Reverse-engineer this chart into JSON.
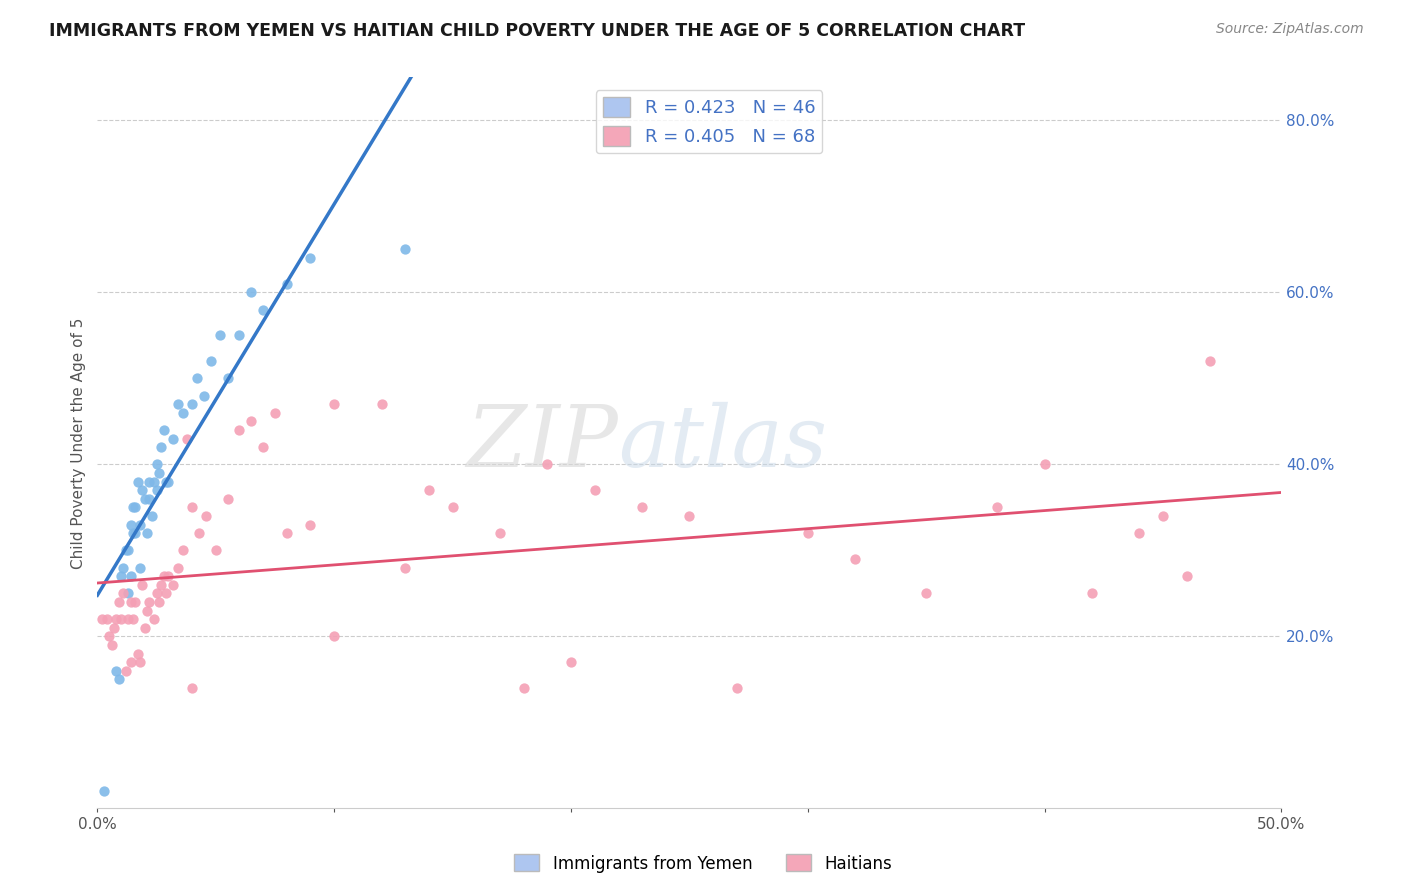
{
  "title": "IMMIGRANTS FROM YEMEN VS HAITIAN CHILD POVERTY UNDER THE AGE OF 5 CORRELATION CHART",
  "source": "Source: ZipAtlas.com",
  "ylabel": "Child Poverty Under the Age of 5",
  "xlim": [
    0.0,
    0.5
  ],
  "ylim": [
    0.0,
    0.85
  ],
  "xticks": [
    0.0,
    0.1,
    0.2,
    0.3,
    0.4,
    0.5
  ],
  "xticklabels_ends": [
    "0.0%",
    "50.0%"
  ],
  "yticks": [
    0.2,
    0.4,
    0.6,
    0.8
  ],
  "yticklabels": [
    "20.0%",
    "40.0%",
    "60.0%",
    "80.0%"
  ],
  "legend1_label": "R = 0.423   N = 46",
  "legend2_label": "R = 0.405   N = 68",
  "legend_color1": "#aec6f0",
  "legend_color2": "#f4a7b9",
  "watermark_zip": "ZIP",
  "watermark_atlas": "atlas",
  "scatter_yemen_color": "#7fb8e8",
  "scatter_haiti_color": "#f4a0b5",
  "line_yemen_color": "#3478c8",
  "line_haiti_color": "#e05070",
  "line_dash_color": "#9ab8d8",
  "yemen_points_x": [
    0.003,
    0.008,
    0.009,
    0.01,
    0.011,
    0.012,
    0.013,
    0.013,
    0.014,
    0.014,
    0.015,
    0.015,
    0.016,
    0.016,
    0.017,
    0.018,
    0.018,
    0.019,
    0.02,
    0.021,
    0.022,
    0.022,
    0.023,
    0.024,
    0.025,
    0.025,
    0.026,
    0.027,
    0.028,
    0.029,
    0.03,
    0.032,
    0.034,
    0.036,
    0.04,
    0.042,
    0.045,
    0.048,
    0.052,
    0.055,
    0.06,
    0.065,
    0.07,
    0.08,
    0.09,
    0.13
  ],
  "yemen_points_y": [
    0.02,
    0.16,
    0.15,
    0.27,
    0.28,
    0.3,
    0.25,
    0.3,
    0.27,
    0.33,
    0.32,
    0.35,
    0.32,
    0.35,
    0.38,
    0.28,
    0.33,
    0.37,
    0.36,
    0.32,
    0.36,
    0.38,
    0.34,
    0.38,
    0.37,
    0.4,
    0.39,
    0.42,
    0.44,
    0.38,
    0.38,
    0.43,
    0.47,
    0.46,
    0.47,
    0.5,
    0.48,
    0.52,
    0.55,
    0.5,
    0.55,
    0.6,
    0.58,
    0.61,
    0.64,
    0.65
  ],
  "haiti_points_x": [
    0.002,
    0.004,
    0.005,
    0.006,
    0.007,
    0.008,
    0.009,
    0.01,
    0.011,
    0.012,
    0.013,
    0.014,
    0.014,
    0.015,
    0.016,
    0.017,
    0.018,
    0.019,
    0.02,
    0.021,
    0.022,
    0.024,
    0.025,
    0.026,
    0.027,
    0.028,
    0.029,
    0.03,
    0.032,
    0.034,
    0.036,
    0.038,
    0.04,
    0.043,
    0.046,
    0.05,
    0.055,
    0.06,
    0.065,
    0.07,
    0.075,
    0.08,
    0.09,
    0.1,
    0.12,
    0.13,
    0.14,
    0.15,
    0.17,
    0.19,
    0.2,
    0.21,
    0.23,
    0.25,
    0.27,
    0.3,
    0.32,
    0.35,
    0.38,
    0.4,
    0.42,
    0.44,
    0.45,
    0.46,
    0.47,
    0.04,
    0.1,
    0.18
  ],
  "haiti_points_y": [
    0.22,
    0.22,
    0.2,
    0.19,
    0.21,
    0.22,
    0.24,
    0.22,
    0.25,
    0.16,
    0.22,
    0.24,
    0.17,
    0.22,
    0.24,
    0.18,
    0.17,
    0.26,
    0.21,
    0.23,
    0.24,
    0.22,
    0.25,
    0.24,
    0.26,
    0.27,
    0.25,
    0.27,
    0.26,
    0.28,
    0.3,
    0.43,
    0.35,
    0.32,
    0.34,
    0.3,
    0.36,
    0.44,
    0.45,
    0.42,
    0.46,
    0.32,
    0.33,
    0.47,
    0.47,
    0.28,
    0.37,
    0.35,
    0.32,
    0.4,
    0.17,
    0.37,
    0.35,
    0.34,
    0.14,
    0.32,
    0.29,
    0.25,
    0.35,
    0.4,
    0.25,
    0.32,
    0.34,
    0.27,
    0.52,
    0.14,
    0.2,
    0.14
  ]
}
